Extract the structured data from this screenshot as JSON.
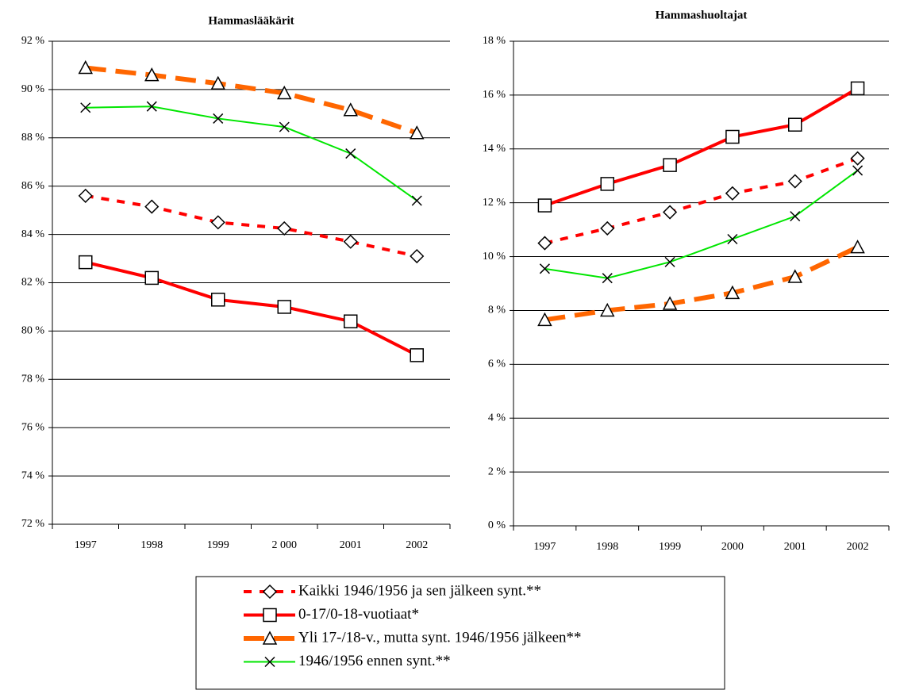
{
  "chart_data": [
    {
      "type": "line",
      "title": "Hammaslääkärit",
      "categories": [
        "1997",
        "1998",
        "1999",
        "2 000",
        "2001",
        "2002"
      ],
      "ylim": [
        72,
        92
      ],
      "yticks": [
        {
          "value": 72,
          "label": "72 %"
        },
        {
          "value": 74,
          "label": "74 %"
        },
        {
          "value": 76,
          "label": "76 %"
        },
        {
          "value": 78,
          "label": "78 %"
        },
        {
          "value": 80,
          "label": "80 %"
        },
        {
          "value": 82,
          "label": "82 %"
        },
        {
          "value": 84,
          "label": "84 %"
        },
        {
          "value": 86,
          "label": "86 %"
        },
        {
          "value": 88,
          "label": "88 %"
        },
        {
          "value": 90,
          "label": "90 %"
        },
        {
          "value": 92,
          "label": "92 %"
        }
      ],
      "grid": true,
      "series": [
        {
          "name": "Kaikki 1946/1956 ja sen jälkeen synt.**",
          "color": "#ff0000",
          "marker": "diamond",
          "dash": "10 10",
          "width": 4,
          "values": [
            85.6,
            85.15,
            84.5,
            84.25,
            83.7,
            83.1
          ]
        },
        {
          "name": "0-17/0-18-vuotiaat*",
          "color": "#ff0000",
          "marker": "square",
          "dash": "none",
          "width": 4,
          "values": [
            82.85,
            82.2,
            81.3,
            81.0,
            80.4,
            79.0
          ]
        },
        {
          "name": "Yli 17-/18-v., mutta synt. 1946/1956 jälkeen**",
          "color": "#ff6600",
          "marker": "triangle",
          "dash": "26 12",
          "width": 6,
          "values": [
            90.9,
            90.6,
            90.25,
            89.85,
            89.15,
            88.2
          ]
        },
        {
          "name": "1946/1956 ennen synt.**",
          "color": "#00e600",
          "marker": "x",
          "dash": "none",
          "width": 2,
          "values": [
            89.25,
            89.3,
            88.8,
            88.45,
            87.35,
            85.4
          ]
        }
      ]
    },
    {
      "type": "line",
      "title": "Hammashuoltajat",
      "categories": [
        "1997",
        "1998",
        "1999",
        "2000",
        "2001",
        "2002"
      ],
      "ylim": [
        0,
        18
      ],
      "yticks": [
        {
          "value": 0,
          "label": "0 %"
        },
        {
          "value": 2,
          "label": "2 %"
        },
        {
          "value": 4,
          "label": "4 %"
        },
        {
          "value": 6,
          "label": "6 %"
        },
        {
          "value": 8,
          "label": "8 %"
        },
        {
          "value": 10,
          "label": "10 %"
        },
        {
          "value": 12,
          "label": "12 %"
        },
        {
          "value": 14,
          "label": "14 %"
        },
        {
          "value": 16,
          "label": "16 %"
        },
        {
          "value": 18,
          "label": "18 %"
        }
      ],
      "grid": true,
      "series": [
        {
          "color": "#ff0000",
          "marker": "diamond",
          "dash": "10 10",
          "width": 4,
          "values": [
            10.5,
            11.05,
            11.65,
            12.35,
            12.8,
            13.65
          ]
        },
        {
          "color": "#ff0000",
          "marker": "square",
          "dash": "none",
          "width": 4,
          "values": [
            11.9,
            12.7,
            13.4,
            14.45,
            14.9,
            16.25
          ]
        },
        {
          "color": "#ff6600",
          "marker": "triangle",
          "dash": "26 12",
          "width": 6,
          "values": [
            7.65,
            8.0,
            8.25,
            8.65,
            9.25,
            10.35
          ]
        },
        {
          "color": "#00e600",
          "marker": "x",
          "dash": "none",
          "width": 2,
          "values": [
            9.55,
            9.2,
            9.8,
            10.65,
            11.5,
            13.2
          ]
        }
      ]
    }
  ]
}
